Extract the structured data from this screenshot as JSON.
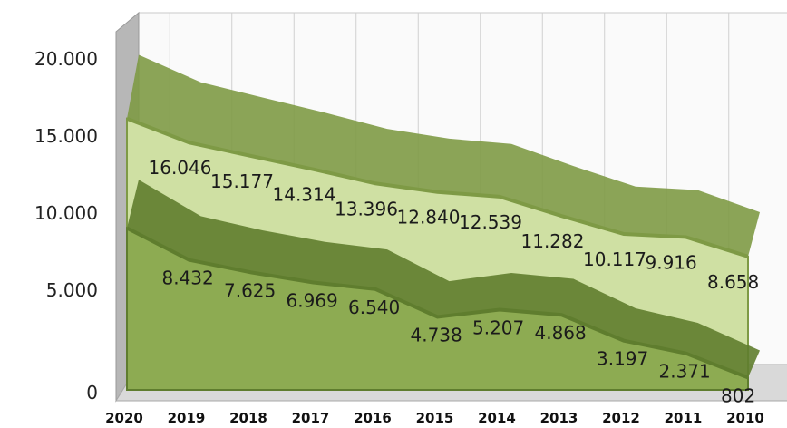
{
  "chart_data": {
    "type": "area",
    "categories": [
      "2020",
      "2019",
      "2018",
      "2017",
      "2016",
      "2015",
      "2014",
      "2013",
      "2012",
      "2011",
      "2010"
    ],
    "series": [
      {
        "values": [
          17600,
          16046,
          15177,
          14314,
          13396,
          12840,
          12539,
          11282,
          10117,
          9916,
          8658
        ],
        "labels": [
          null,
          "16.046",
          "15.177",
          "14.314",
          "13.396",
          "12.840",
          "12.539",
          "11.282",
          "10.117",
          "9.916",
          "8.658"
        ]
      },
      {
        "values": [
          10500,
          8432,
          7625,
          6969,
          6540,
          4738,
          5207,
          4868,
          3197,
          2371,
          802
        ],
        "labels": [
          null,
          "8.432",
          "7.625",
          "6.969",
          "6.540",
          "4.738",
          "5.207",
          "4.868",
          "3.197",
          "2.371",
          "802"
        ]
      }
    ],
    "ylim": [
      0,
      20000
    ],
    "yticks": [
      0,
      5000,
      10000,
      15000,
      20000
    ],
    "ytick_labels": [
      "0",
      "5.000",
      "10.000",
      "15.000",
      "20.000"
    ],
    "grid": true,
    "colors": {
      "upper_fill": "#cfe0a3",
      "upper_edge": "#7e9a45",
      "lower_fill": "#8dab52",
      "lower_edge": "#5f7d2e",
      "wall": "#fafafa",
      "side_wall": "#b7b7b7"
    }
  }
}
